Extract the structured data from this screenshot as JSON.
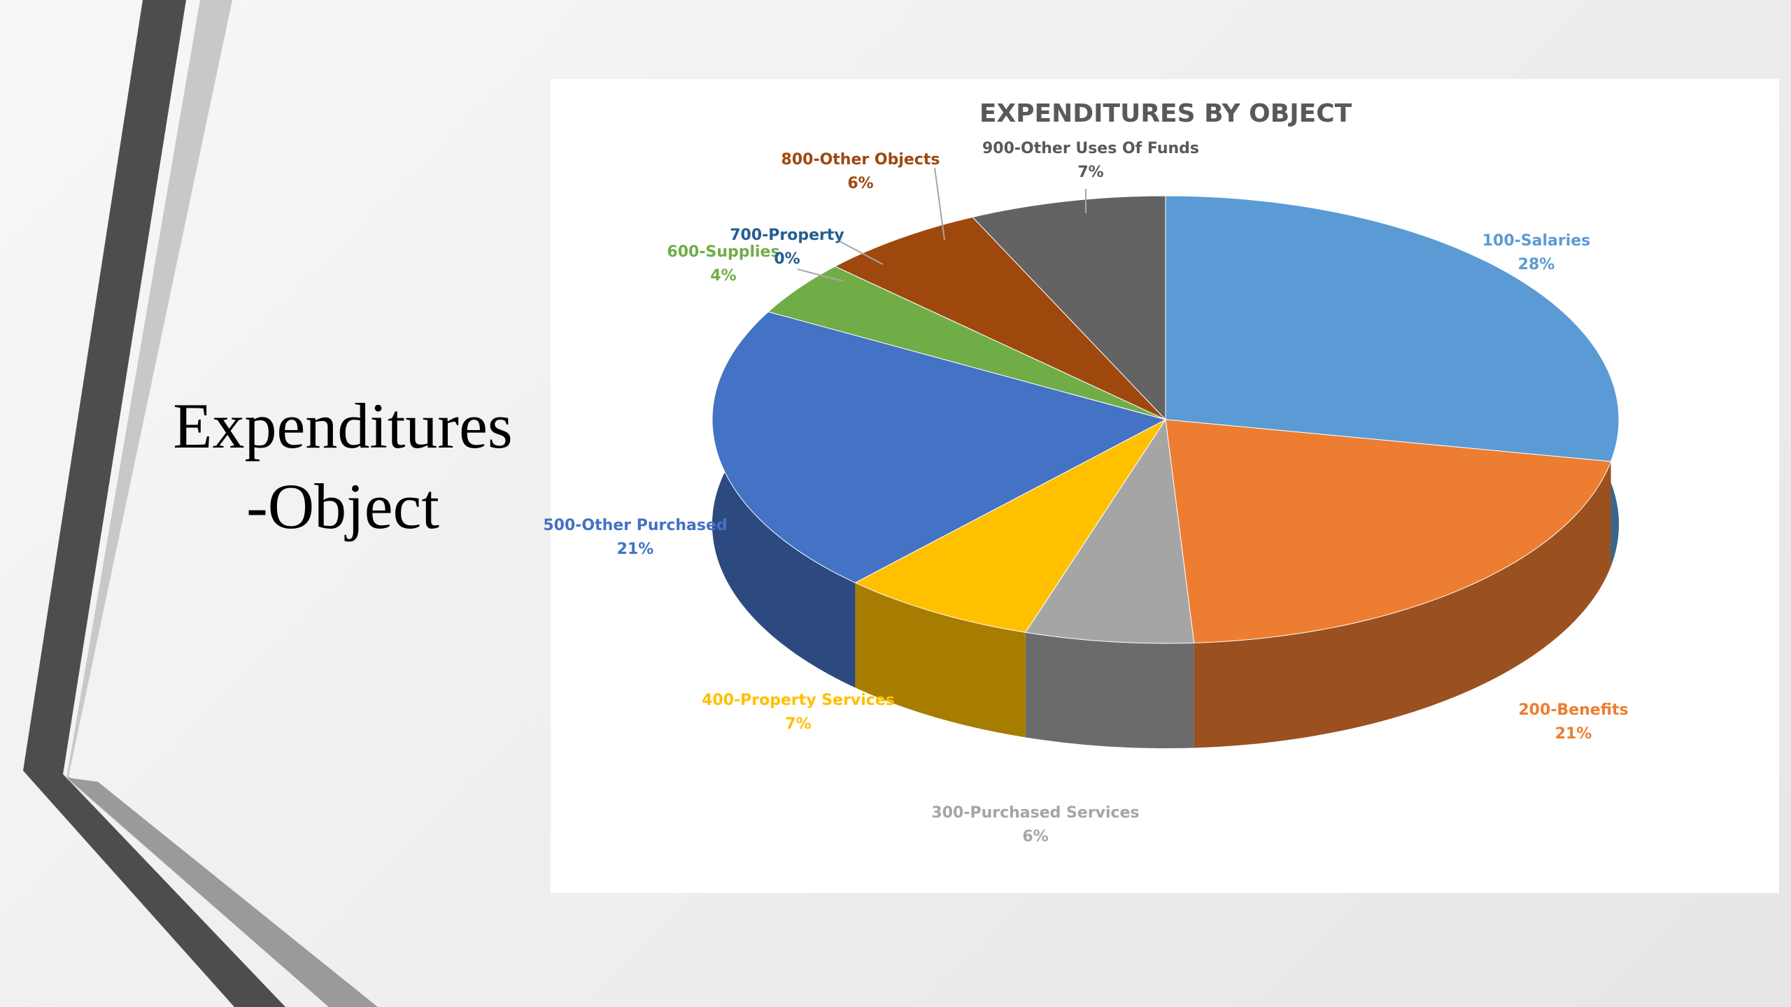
{
  "slide": {
    "title_lines": [
      "Expenditures",
      "-Object"
    ]
  },
  "chart_data": {
    "type": "pie3d",
    "title": "EXPENDITURES BY OBJECT",
    "categories": [
      "100-Salaries",
      "200-Benefits",
      "300-Purchased Services",
      "400-Property Services",
      "500-Other Purchased",
      "600-Supplies",
      "700-Property",
      "800-Other Objects",
      "900-Other Uses Of Funds"
    ],
    "values": [
      28,
      21,
      6,
      7,
      21,
      4,
      0,
      6,
      7
    ],
    "value_labels": [
      "28%",
      "21%",
      "6%",
      "7%",
      "21%",
      "4%",
      "0%",
      "6%",
      "7%"
    ],
    "colors": [
      "#5b9bd5",
      "#ed7d31",
      "#a5a5a5",
      "#ffc000",
      "#4472c4",
      "#70ad47",
      "#255e91",
      "#9e480e",
      "#636363"
    ]
  }
}
